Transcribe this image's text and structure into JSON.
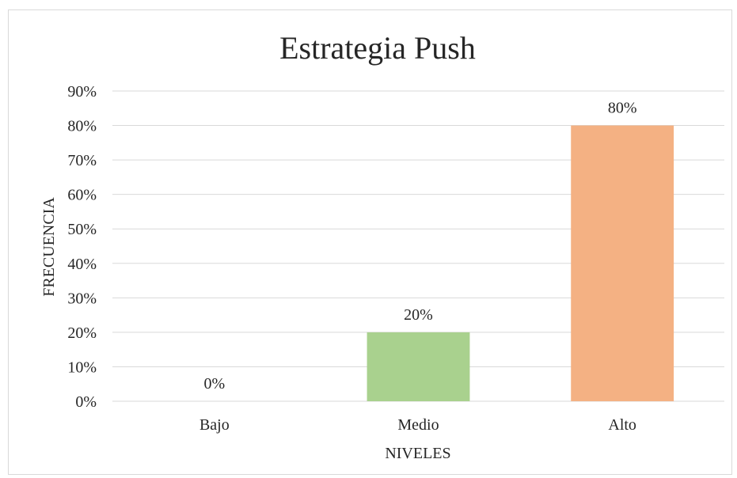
{
  "chart_data": {
    "type": "bar",
    "title": "Estrategia Push",
    "xlabel": "NIVELES",
    "ylabel": "FRECUENCIA",
    "categories": [
      "Bajo",
      "Medio",
      "Alto"
    ],
    "values": [
      0,
      20,
      80
    ],
    "data_labels": [
      "0%",
      "20%",
      "80%"
    ],
    "colors": [
      "#4472c4",
      "#a9d18e",
      "#f4b183"
    ],
    "ylim": [
      0,
      90
    ],
    "yticks": [
      0,
      10,
      20,
      30,
      40,
      50,
      60,
      70,
      80,
      90
    ],
    "ytick_labels": [
      "0%",
      "10%",
      "20%",
      "30%",
      "40%",
      "50%",
      "60%",
      "70%",
      "80%",
      "90%"
    ],
    "grid": true,
    "legend": "none"
  }
}
